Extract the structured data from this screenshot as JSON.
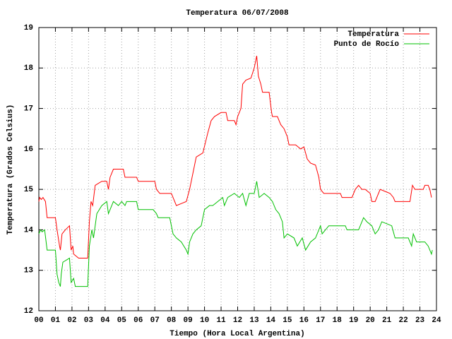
{
  "chart_data": {
    "type": "line",
    "title": "Temperatura 06/07/2008",
    "xlabel": "Tiempo (Hora Local Argentina)",
    "ylabel": "Temperatura (Grados Celsius)",
    "xlim": [
      0,
      24
    ],
    "ylim": [
      12,
      19
    ],
    "grid": true,
    "legend": "top-right",
    "xticks": [
      {
        "value": 0,
        "label": "00"
      },
      {
        "value": 1,
        "label": "01"
      },
      {
        "value": 2,
        "label": "02"
      },
      {
        "value": 3,
        "label": "03"
      },
      {
        "value": 4,
        "label": "04"
      },
      {
        "value": 5,
        "label": "05"
      },
      {
        "value": 6,
        "label": "06"
      },
      {
        "value": 7,
        "label": "07"
      },
      {
        "value": 8,
        "label": "08"
      },
      {
        "value": 9,
        "label": "09"
      },
      10,
      11,
      12,
      13,
      14,
      15,
      16,
      17,
      18,
      19,
      20,
      21,
      22,
      23,
      24
    ],
    "yticks": [
      12,
      13,
      14,
      15,
      16,
      17,
      18,
      19
    ],
    "series": [
      {
        "name": "Temperatura",
        "color": "#ff0000",
        "x": [
          0.0,
          0.05,
          0.15,
          0.25,
          0.4,
          0.5,
          1.0,
          1.1,
          1.25,
          1.3,
          1.4,
          1.6,
          1.85,
          1.95,
          2.05,
          2.1,
          2.4,
          2.95,
          3.05,
          3.15,
          3.25,
          3.4,
          3.6,
          3.8,
          4.1,
          4.2,
          4.3,
          4.5,
          5.1,
          5.2,
          5.9,
          6.0,
          7.0,
          7.1,
          7.3,
          8.0,
          8.3,
          8.6,
          8.9,
          9.1,
          9.3,
          9.5,
          9.9,
          10.2,
          10.4,
          10.6,
          11.0,
          11.3,
          11.4,
          11.8,
          11.9,
          12.0,
          12.2,
          12.3,
          12.5,
          12.8,
          13.0,
          13.15,
          13.25,
          13.4,
          13.5,
          13.9,
          14.05,
          14.1,
          14.4,
          14.6,
          14.8,
          15.0,
          15.1,
          15.5,
          15.8,
          16.0,
          16.1,
          16.2,
          16.4,
          16.7,
          16.9,
          17.0,
          17.2,
          18.2,
          18.3,
          18.9,
          19.1,
          19.3,
          19.5,
          19.7,
          20.0,
          20.1,
          20.3,
          20.6,
          20.9,
          21.2,
          21.4,
          21.5,
          22.4,
          22.55,
          22.7,
          23.2,
          23.3,
          23.5,
          23.6,
          23.7
        ],
        "values": [
          14.7,
          14.8,
          14.75,
          14.8,
          14.7,
          14.3,
          14.3,
          14.0,
          13.6,
          13.5,
          13.9,
          14.0,
          14.1,
          13.5,
          13.6,
          13.4,
          13.3,
          13.3,
          14.2,
          14.7,
          14.6,
          15.1,
          15.15,
          15.2,
          15.2,
          15.0,
          15.3,
          15.5,
          15.5,
          15.3,
          15.3,
          15.2,
          15.2,
          15.0,
          14.9,
          14.9,
          14.6,
          14.65,
          14.7,
          15.0,
          15.4,
          15.8,
          15.9,
          16.4,
          16.7,
          16.8,
          16.9,
          16.9,
          16.7,
          16.7,
          16.6,
          16.8,
          17.0,
          17.6,
          17.7,
          17.75,
          18.0,
          18.3,
          17.8,
          17.6,
          17.4,
          17.4,
          16.9,
          16.8,
          16.8,
          16.6,
          16.5,
          16.3,
          16.1,
          16.1,
          16.0,
          16.05,
          15.9,
          15.75,
          15.65,
          15.6,
          15.3,
          15.0,
          14.9,
          14.9,
          14.8,
          14.8,
          15.0,
          15.1,
          15.0,
          15.0,
          14.9,
          14.7,
          14.7,
          15.0,
          14.95,
          14.9,
          14.8,
          14.7,
          14.7,
          15.1,
          15.0,
          15.0,
          15.1,
          15.1,
          15.0,
          14.8
        ]
      },
      {
        "name": "Punto de Rocío",
        "color": "#00c000",
        "x": [
          0.0,
          0.1,
          0.2,
          0.35,
          0.5,
          1.0,
          1.1,
          1.2,
          1.3,
          1.35,
          1.45,
          1.85,
          1.95,
          2.1,
          2.2,
          2.95,
          3.05,
          3.2,
          3.3,
          3.5,
          3.8,
          4.1,
          4.2,
          4.5,
          4.8,
          5.0,
          5.2,
          5.3,
          5.9,
          6.0,
          6.9,
          7.1,
          7.2,
          7.9,
          8.1,
          8.3,
          8.6,
          8.9,
          9.0,
          9.1,
          9.3,
          9.5,
          9.8,
          10.0,
          10.3,
          10.5,
          10.8,
          11.1,
          11.2,
          11.4,
          11.8,
          12.1,
          12.3,
          12.5,
          12.7,
          13.0,
          13.15,
          13.3,
          13.6,
          13.9,
          14.1,
          14.3,
          14.5,
          14.7,
          14.8,
          15.0,
          15.4,
          15.6,
          15.9,
          16.1,
          16.4,
          16.7,
          17.0,
          17.1,
          17.3,
          17.5,
          18.5,
          18.6,
          19.3,
          19.6,
          19.8,
          20.1,
          20.3,
          20.5,
          20.7,
          21.0,
          21.3,
          21.5,
          22.3,
          22.5,
          22.6,
          22.8,
          23.3,
          23.5,
          23.7,
          23.75
        ],
        "values": [
          13.9,
          14.0,
          13.95,
          14.0,
          13.5,
          13.5,
          12.9,
          12.7,
          12.6,
          12.9,
          13.2,
          13.3,
          12.7,
          12.8,
          12.6,
          12.6,
          13.6,
          14.0,
          13.8,
          14.4,
          14.6,
          14.7,
          14.4,
          14.7,
          14.6,
          14.7,
          14.6,
          14.7,
          14.7,
          14.5,
          14.5,
          14.4,
          14.3,
          14.3,
          13.9,
          13.8,
          13.7,
          13.5,
          13.4,
          13.7,
          13.9,
          14.0,
          14.1,
          14.5,
          14.6,
          14.6,
          14.7,
          14.8,
          14.6,
          14.8,
          14.9,
          14.8,
          14.9,
          14.6,
          14.9,
          14.9,
          15.2,
          14.8,
          14.9,
          14.8,
          14.7,
          14.5,
          14.4,
          14.2,
          13.8,
          13.9,
          13.8,
          13.6,
          13.8,
          13.5,
          13.7,
          13.8,
          14.1,
          13.9,
          14.0,
          14.1,
          14.1,
          14.0,
          14.0,
          14.3,
          14.2,
          14.1,
          13.9,
          14.0,
          14.2,
          14.15,
          14.1,
          13.8,
          13.8,
          13.6,
          13.9,
          13.7,
          13.7,
          13.6,
          13.4,
          13.5
        ]
      }
    ]
  }
}
